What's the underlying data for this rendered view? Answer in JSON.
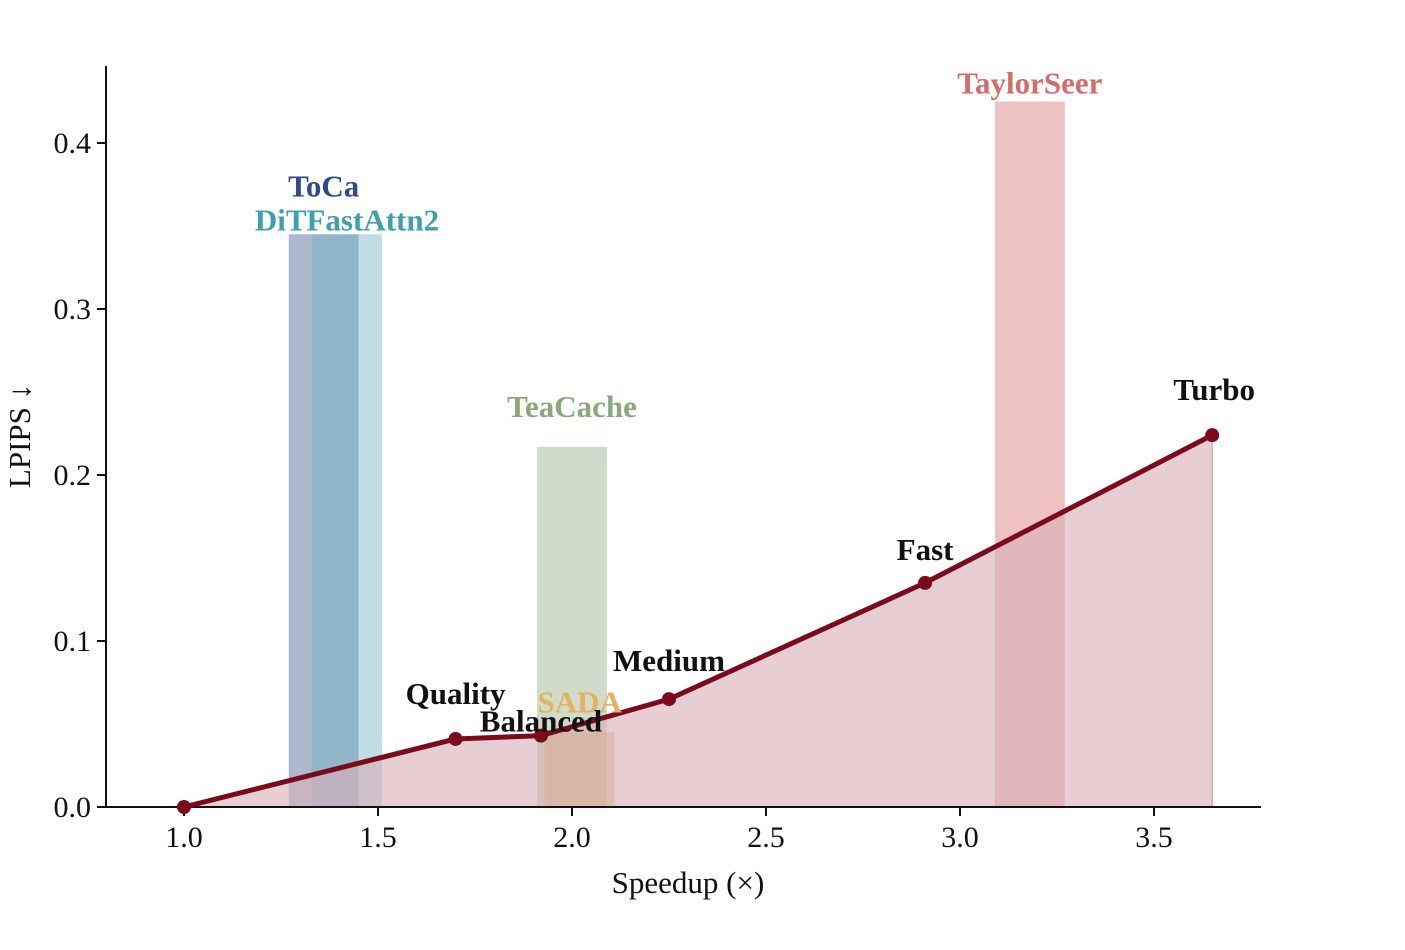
{
  "chart_data": {
    "type": "line",
    "xlabel": "Speedup (×)",
    "ylabel": "LPIPS ↓",
    "xlim": [
      0.8,
      4.0
    ],
    "ylim": [
      0.0,
      0.4
    ],
    "x_ticks": [
      1.0,
      1.5,
      2.0,
      2.5,
      3.0,
      3.5
    ],
    "x_tick_labels": [
      "1.0",
      "1.5",
      "2.0",
      "2.5",
      "3.0",
      "3.5"
    ],
    "y_ticks": [
      0.0,
      0.1,
      0.2,
      0.3,
      0.4
    ],
    "y_tick_labels": [
      "0.0",
      "0.1",
      "0.2",
      "0.3",
      "0.4"
    ],
    "grid": false,
    "line_color": "#7a0a1c",
    "fill_color": "#d8b0b8",
    "curve": [
      {
        "x": 1.0,
        "y": 0.0,
        "label": ""
      },
      {
        "x": 1.7,
        "y": 0.041,
        "label": "Quality"
      },
      {
        "x": 1.92,
        "y": 0.043,
        "label": "Balanced"
      },
      {
        "x": 2.25,
        "y": 0.065,
        "label": "Medium"
      },
      {
        "x": 2.91,
        "y": 0.135,
        "label": "Fast"
      },
      {
        "x": 3.65,
        "y": 0.224,
        "label": "Turbo"
      }
    ],
    "bars": [
      {
        "name": "ToCa",
        "x_start": 1.27,
        "x_end": 1.45,
        "y": 0.345,
        "color": "#5b6f9d",
        "alpha": 0.5,
        "label_color": "#2f4a86"
      },
      {
        "name": "DiTFastAttn2",
        "x_start": 1.33,
        "x_end": 1.51,
        "y": 0.345,
        "color": "#6fb5c4",
        "alpha": 0.45,
        "label_color": "#3ea0ae"
      },
      {
        "name": "TeaCache",
        "x_start": 1.91,
        "x_end": 2.09,
        "y": 0.217,
        "color": "#a9bf9c",
        "alpha": 0.55,
        "label_color": "#8aa878"
      },
      {
        "name": "SADA",
        "x_start": 1.93,
        "x_end": 2.11,
        "y": 0.045,
        "color": "#d9a055",
        "alpha": 0.5,
        "label_color": "#e6b060"
      },
      {
        "name": "TaylorSeer",
        "x_start": 3.09,
        "x_end": 3.27,
        "y": 0.425,
        "color": "#e39999",
        "alpha": 0.6,
        "label_color": "#d46c6c"
      }
    ]
  }
}
